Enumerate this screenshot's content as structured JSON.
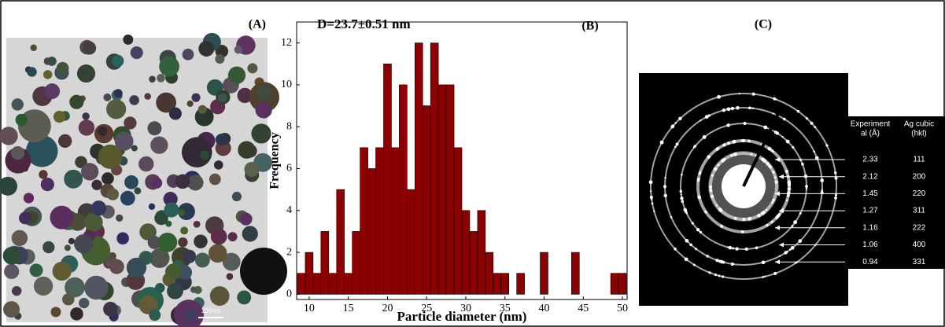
{
  "panel_a": {
    "label": "(A)",
    "scale_bar": "100nm"
  },
  "chart_data": {
    "type": "histogram",
    "panel_label": "(B)",
    "title": "D=23.7±0.51 nm",
    "xlabel": "Particle diameter (nm)",
    "ylabel": "Frequency",
    "bins": [
      8.5,
      9.5,
      10.5,
      11.5,
      12.5,
      13.5,
      14.5,
      15.5,
      16.5,
      17.5,
      18.5,
      19.5,
      20.5,
      21.5,
      22.5,
      23.5,
      24.5,
      25.5,
      26.5,
      27.5,
      28.5,
      29.5,
      30.5,
      31.5,
      32.5,
      33.5,
      34.5,
      35.5,
      36.5,
      37.5,
      38.5,
      39.5,
      40.5,
      41.5,
      42.5,
      43.5,
      44.5,
      45.5,
      46.5,
      47.5,
      48.5,
      49.5,
      50.5
    ],
    "counts": [
      1,
      2,
      1,
      3,
      1,
      5,
      1,
      3,
      7,
      6,
      7,
      11,
      7,
      10,
      5,
      12,
      9,
      12,
      10,
      10,
      7,
      4,
      3,
      4,
      2,
      1,
      1,
      0,
      1,
      0,
      0,
      2,
      0,
      0,
      0,
      2,
      0,
      0,
      0,
      0,
      1,
      1
    ],
    "color": "#8b0000",
    "xlim": [
      8.4,
      50.6
    ],
    "xticks": [
      10,
      15,
      20,
      25,
      30,
      35,
      40,
      45,
      50
    ],
    "ylim": [
      -0.25,
      13
    ],
    "yticks": [
      0,
      2,
      4,
      6,
      8,
      10,
      12
    ]
  },
  "panel_c": {
    "label": "(C)",
    "table": {
      "header": [
        [
          "Experiment",
          "al (Å)"
        ],
        [
          "Ag cubic",
          "(hkl)"
        ]
      ],
      "rows": [
        [
          2.33,
          111
        ],
        [
          2.12,
          200
        ],
        [
          1.45,
          220
        ],
        [
          1.27,
          311
        ],
        [
          1.16,
          222
        ],
        [
          1.06,
          400
        ],
        [
          0.94,
          331
        ]
      ]
    }
  }
}
